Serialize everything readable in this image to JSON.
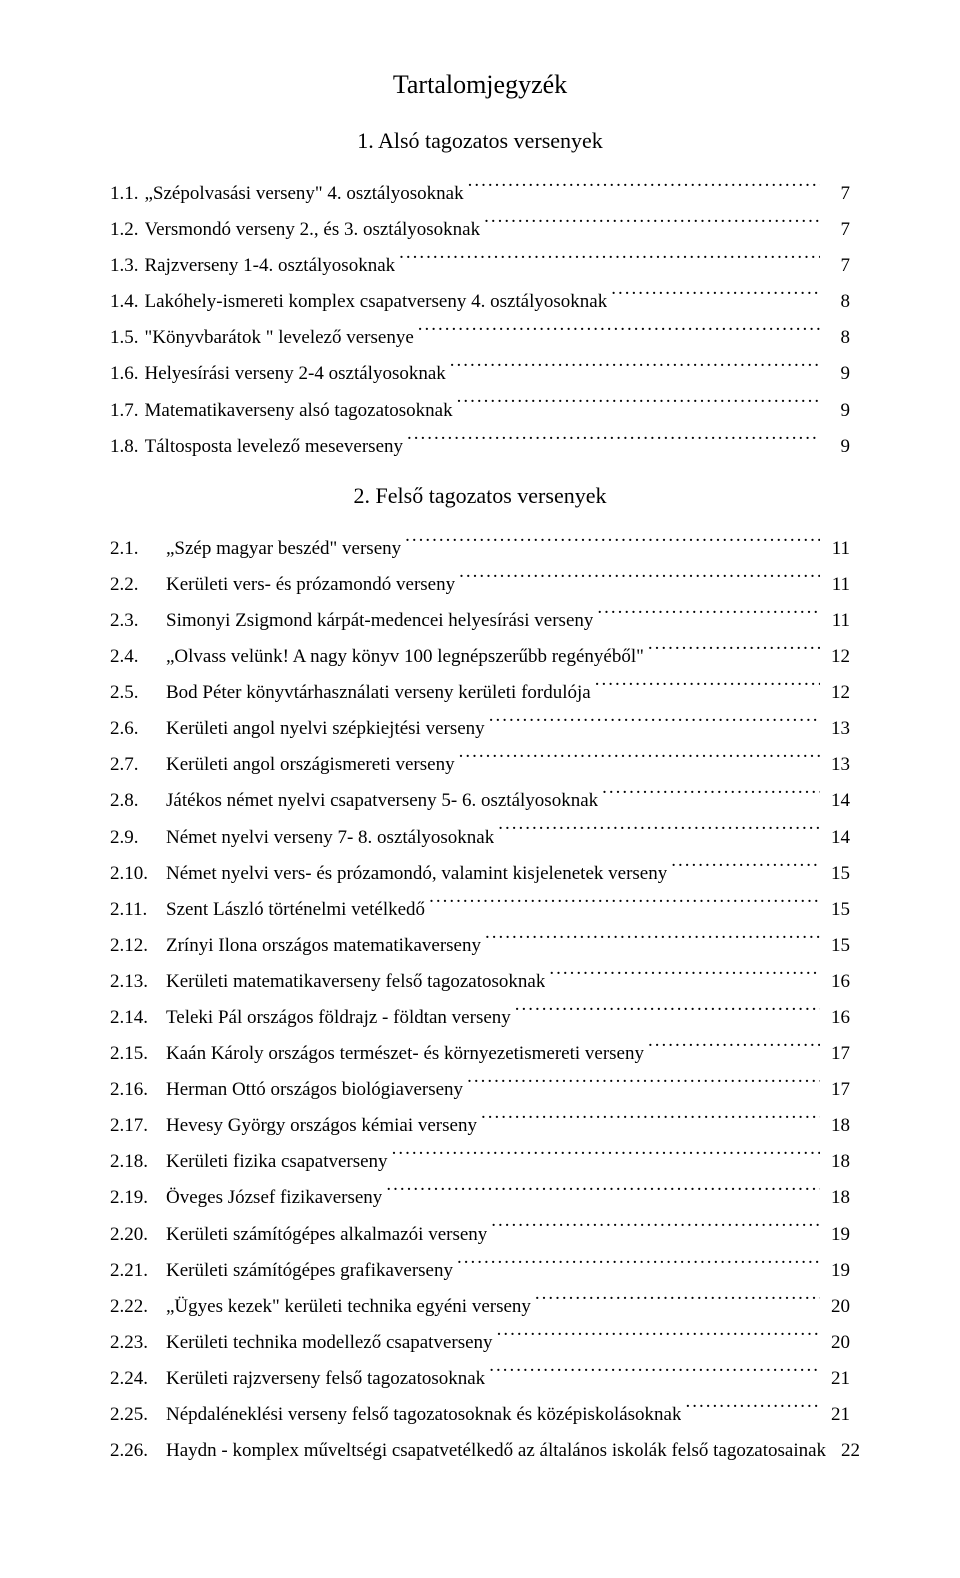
{
  "title": "Tartalomjegyzék",
  "section1": {
    "heading": "1.   Alsó tagozatos versenyek",
    "items": [
      {
        "num": "1.1.",
        "label": "„Szépolvasási verseny\" 4. osztályosoknak",
        "page": "7"
      },
      {
        "num": "1.2.",
        "label": "Versmondó verseny 2., és 3. osztályosoknak",
        "page": "7"
      },
      {
        "num": "1.3.",
        "label": "Rajzverseny 1-4. osztályosoknak",
        "page": "7"
      },
      {
        "num": "1.4.",
        "label": "Lakóhely-ismereti komplex csapatverseny 4. osztályosoknak",
        "page": "8"
      },
      {
        "num": "1.5.",
        "label": "\"Könyvbarátok \" levelező versenye",
        "page": "8"
      },
      {
        "num": "1.6.",
        "label": "Helyesírási verseny 2-4 osztályosoknak",
        "page": "9"
      },
      {
        "num": "1.7.",
        "label": "Matematikaverseny alsó tagozatosoknak",
        "page": "9"
      },
      {
        "num": "1.8.",
        "label": "Táltosposta levelező meseverseny",
        "page": "9"
      }
    ]
  },
  "section2": {
    "heading": "2.   Felső tagozatos versenyek",
    "items": [
      {
        "num": "2.1.",
        "label": "„Szép magyar beszéd\" verseny",
        "page": "11"
      },
      {
        "num": "2.2.",
        "label": "Kerületi vers- és prózamondó verseny",
        "page": "11"
      },
      {
        "num": "2.3.",
        "label": "Simonyi Zsigmond kárpát-medencei helyesírási  verseny",
        "page": "11"
      },
      {
        "num": "2.4.",
        "label": "„Olvass velünk! A nagy könyv 100 legnépszerűbb regényéből\"",
        "page": "12"
      },
      {
        "num": "2.5.",
        "label": "Bod Péter könyvtárhasználati verseny kerületi fordulója",
        "page": "12"
      },
      {
        "num": "2.6.",
        "label": "Kerületi angol nyelvi szépkiejtési verseny",
        "page": "13"
      },
      {
        "num": "2.7.",
        "label": "Kerületi angol országismereti verseny",
        "page": "13"
      },
      {
        "num": "2.8.",
        "label": "Játékos német nyelvi csapatverseny 5- 6. osztályosoknak",
        "page": "14"
      },
      {
        "num": "2.9.",
        "label": "Német nyelvi verseny 7- 8. osztályosoknak",
        "page": "14"
      },
      {
        "num": "2.10.",
        "label": "Német nyelvi vers- és prózamondó, valamint kisjelenetek verseny",
        "page": "15"
      },
      {
        "num": "2.11.",
        "label": "Szent László történelmi vetélkedő",
        "page": "15"
      },
      {
        "num": "2.12.",
        "label": "Zrínyi Ilona országos matematikaverseny",
        "page": "15"
      },
      {
        "num": "2.13.",
        "label": "Kerületi matematikaverseny felső tagozatosoknak",
        "page": "16"
      },
      {
        "num": "2.14.",
        "label": "Teleki Pál országos földrajz - földtan verseny",
        "page": "16"
      },
      {
        "num": "2.15.",
        "label": "Kaán Károly országos természet- és környezetismereti verseny",
        "page": "17"
      },
      {
        "num": "2.16.",
        "label": "Herman Ottó országos biológiaverseny",
        "page": "17"
      },
      {
        "num": "2.17.",
        "label": "Hevesy György országos kémiai verseny",
        "page": "18"
      },
      {
        "num": "2.18.",
        "label": "Kerületi fizika csapatverseny",
        "page": "18"
      },
      {
        "num": "2.19.",
        "label": "Öveges József fizikaverseny",
        "page": "18"
      },
      {
        "num": "2.20.",
        "label": "Kerületi számítógépes alkalmazói verseny",
        "page": "19"
      },
      {
        "num": "2.21.",
        "label": "Kerületi számítógépes grafikaverseny",
        "page": "19"
      },
      {
        "num": "2.22.",
        "label": "„Ügyes kezek\" kerületi technika egyéni verseny",
        "page": "20"
      },
      {
        "num": "2.23.",
        "label": "Kerületi technika modellező csapatverseny",
        "page": "20"
      },
      {
        "num": "2.24.",
        "label": "Kerületi rajzverseny felső tagozatosoknak",
        "page": "21"
      },
      {
        "num": "2.25.",
        "label": "Népdaléneklési verseny felső tagozatosoknak és középiskolásoknak",
        "page": "21"
      },
      {
        "num": "2.26.",
        "label": "Haydn - komplex műveltségi csapatvetélkedő az általános iskolák felső tagozatosainak",
        "page": "22"
      }
    ]
  }
}
